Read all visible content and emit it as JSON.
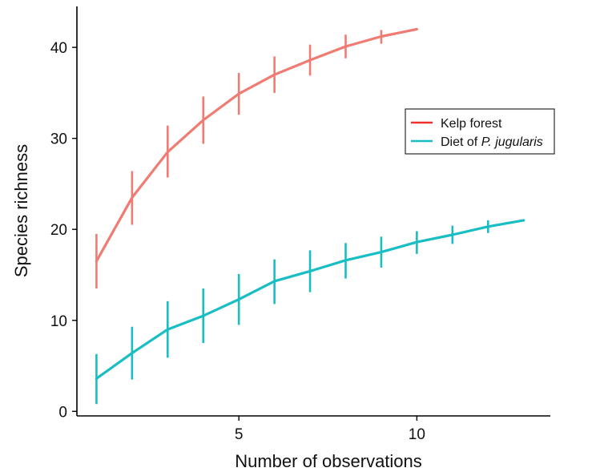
{
  "chart_data": {
    "type": "line",
    "xlabel": "Number of observations",
    "ylabel": "Species richness",
    "xlim": [
      0.45,
      13.75
    ],
    "ylim": [
      -0.5,
      44.5
    ],
    "xticks": [
      5,
      10
    ],
    "yticks": [
      0,
      10,
      20,
      30,
      40
    ],
    "grid": false,
    "legend": {
      "position": "right",
      "entries": [
        {
          "prefix": "Kelp forest",
          "italic": ""
        },
        {
          "prefix": "Diet of ",
          "italic": "P. jugularis"
        }
      ]
    },
    "series": [
      {
        "name": "Kelp forest",
        "color": "#F07B72",
        "x": [
          1,
          2,
          3,
          4,
          5,
          6,
          7,
          8,
          9,
          10
        ],
        "y": [
          16.5,
          23.5,
          28.5,
          32,
          34.9,
          37,
          38.6,
          40.1,
          41.2,
          42
        ],
        "err_low": [
          13.5,
          20.5,
          25.7,
          29.4,
          32.6,
          35,
          36.9,
          38.8,
          40.4,
          42
        ],
        "err_high": [
          19.5,
          26.4,
          31.4,
          34.6,
          37.2,
          39,
          40.3,
          41.4,
          41.9,
          42
        ]
      },
      {
        "name": "Diet of P. jugularis",
        "color": "#18BEC4",
        "x": [
          1,
          2,
          3,
          4,
          5,
          6,
          7,
          8,
          9,
          10,
          11,
          12,
          13
        ],
        "y": [
          3.6,
          6.4,
          9,
          10.5,
          12.3,
          14.3,
          15.4,
          16.6,
          17.5,
          18.6,
          19.4,
          20.3,
          21
        ],
        "err_low": [
          0.8,
          3.5,
          5.9,
          7.5,
          9.5,
          11.8,
          13.1,
          14.6,
          15.8,
          17.3,
          18.4,
          19.6,
          21
        ],
        "err_high": [
          6.3,
          9.3,
          12.1,
          13.5,
          15.1,
          16.7,
          17.7,
          18.5,
          19.2,
          19.8,
          20.4,
          21,
          21
        ]
      }
    ]
  }
}
